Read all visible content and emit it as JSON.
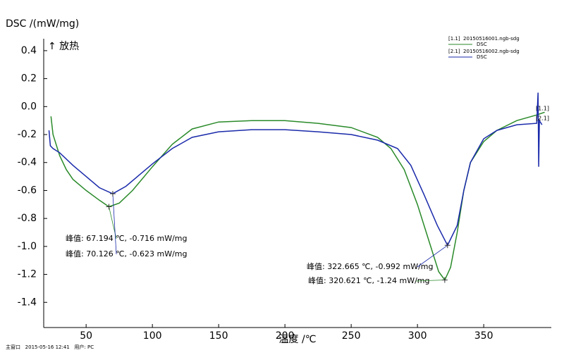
{
  "chart_data": {
    "type": "line",
    "y_label": "DSC /(mW/mg)",
    "x_label": "温度 /℃",
    "exo_label": "↑ 放热",
    "footer": "主窗口   2015-05-16 12:41   用户: PC",
    "xlim": [
      18,
      401
    ],
    "ylim": [
      -1.58,
      0.46
    ],
    "xticks": [
      50,
      100,
      150,
      200,
      250,
      300,
      350
    ],
    "yticks": [
      0.4,
      0.2,
      {
        "value": 0,
        "label": "0.0"
      },
      -0.2,
      -0.4,
      -0.6,
      -0.8,
      {
        "value": -1,
        "label": "-1.0"
      },
      -1.2,
      -1.4
    ],
    "series": [
      {
        "name": "[1.1]  20150516001.ngb-sdg",
        "legend_sub": "DSC",
        "end_label": "[1.1]",
        "color": "#2a8a2a",
        "x": [
          23.5,
          25,
          30,
          35,
          40,
          50,
          60,
          67.2,
          75,
          85,
          100,
          115,
          130,
          150,
          175,
          200,
          225,
          250,
          270,
          280,
          290,
          300,
          310,
          316,
          320.6,
          325,
          330,
          335,
          340,
          350,
          360,
          375,
          390,
          396
        ],
        "values": [
          -0.07,
          -0.2,
          -0.35,
          -0.45,
          -0.52,
          -0.6,
          -0.67,
          -0.716,
          -0.69,
          -0.6,
          -0.43,
          -0.27,
          -0.16,
          -0.11,
          -0.1,
          -0.1,
          -0.12,
          -0.15,
          -0.22,
          -0.3,
          -0.45,
          -0.7,
          -1.0,
          -1.18,
          -1.24,
          -1.15,
          -0.9,
          -0.6,
          -0.4,
          -0.25,
          -0.17,
          -0.1,
          -0.06,
          -0.04
        ]
      },
      {
        "name": "[2.1]  20150516002.ngb-sdg",
        "legend_sub": "DSC",
        "end_label": "[2.1]",
        "color": "#1a2aaa",
        "x": [
          22,
          23,
          25,
          30,
          40,
          50,
          60,
          70.1,
          80,
          90,
          100,
          115,
          130,
          150,
          175,
          200,
          225,
          250,
          270,
          285,
          295,
          305,
          315,
          322.7,
          330,
          335,
          340,
          350,
          360,
          375,
          390,
          391,
          391.5,
          392,
          394
        ],
        "values": [
          -0.17,
          -0.28,
          -0.3,
          -0.33,
          -0.42,
          -0.5,
          -0.58,
          -0.623,
          -0.57,
          -0.49,
          -0.41,
          -0.3,
          -0.22,
          -0.18,
          -0.165,
          -0.165,
          -0.18,
          -0.2,
          -0.24,
          -0.3,
          -0.42,
          -0.63,
          -0.85,
          -0.992,
          -0.85,
          -0.6,
          -0.4,
          -0.23,
          -0.17,
          -0.13,
          -0.12,
          0.1,
          -0.43,
          -0.1,
          -0.13
        ]
      }
    ],
    "annotations": [
      {
        "text": "峰值: 67.194 ℃, -0.716 mW/mg",
        "color": "#2a8a2a"
      },
      {
        "text": "峰值: 70.126 ℃, -0.623 mW/mg",
        "color": "#1a2aaa"
      },
      {
        "text": "峰值: 322.665 ℃, -0.992 mW/mg",
        "color": "#1a2aaa"
      },
      {
        "text": "峰值: 320.621 ℃, -1.24 mW/mg",
        "color": "#2a8a2a"
      }
    ]
  }
}
